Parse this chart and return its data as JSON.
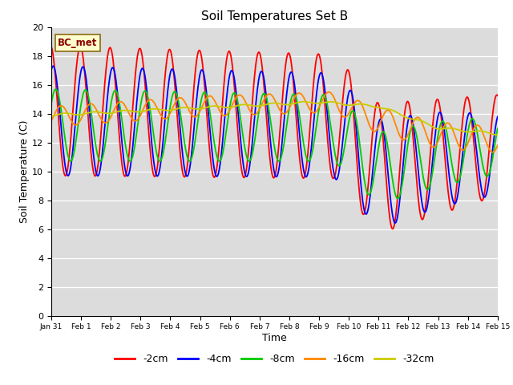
{
  "title": "Soil Temperatures Set B",
  "xlabel": "Time",
  "ylabel": "Soil Temperature (C)",
  "annotation": "BC_met",
  "ylim": [
    0,
    20
  ],
  "yticks": [
    0,
    2,
    4,
    6,
    8,
    10,
    12,
    14,
    16,
    18,
    20
  ],
  "xtick_labels": [
    "Jan 31",
    "Feb 1",
    "Feb 2",
    "Feb 3",
    "Feb 4",
    "Feb 5",
    "Feb 6",
    "Feb 7",
    "Feb 8",
    "Feb 9",
    "Feb 10",
    "Feb 11",
    "Feb 12",
    "Feb 13",
    "Feb 14",
    "Feb 15"
  ],
  "series_colors": [
    "#ff0000",
    "#0000ff",
    "#00cc00",
    "#ff8800",
    "#cccc00"
  ],
  "series_labels": [
    "-2cm",
    "-4cm",
    "-8cm",
    "-16cm",
    "-32cm"
  ],
  "bg_color": "#dcdcdc",
  "linewidth": 1.3
}
